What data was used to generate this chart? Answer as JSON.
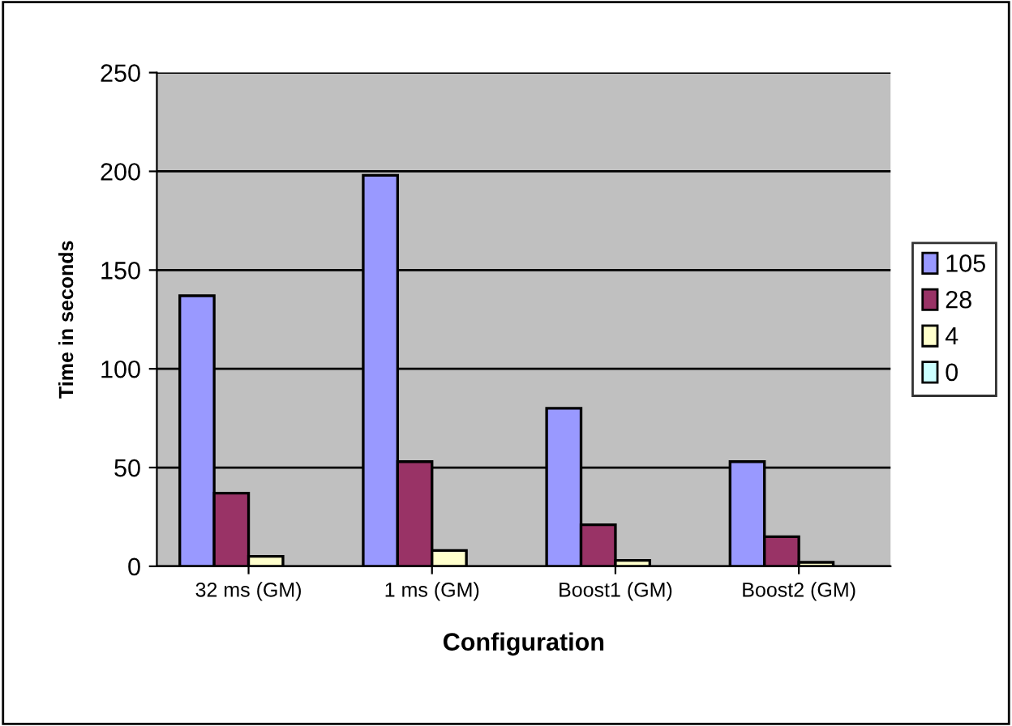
{
  "chart_data": {
    "type": "bar",
    "xlabel": "Configuration",
    "ylabel": "Time in seconds",
    "categories": [
      "32 ms (GM)",
      "1 ms (GM)",
      "Boost1 (GM)",
      "Boost2 (GM)"
    ],
    "series": [
      {
        "name": "105",
        "color": "#9999ff",
        "values": [
          137,
          198,
          80,
          53
        ]
      },
      {
        "name": "28",
        "color": "#993366",
        "values": [
          37,
          53,
          21,
          15
        ]
      },
      {
        "name": "4",
        "color": "#ffffcc",
        "values": [
          5,
          8,
          3,
          2
        ]
      },
      {
        "name": "0",
        "color": "#ccffff",
        "values": [
          0,
          0,
          0,
          0
        ]
      }
    ],
    "ylim": [
      0,
      250
    ],
    "yticks": [
      0,
      50,
      100,
      150,
      200,
      250
    ],
    "grid": "y",
    "legend": "right"
  }
}
